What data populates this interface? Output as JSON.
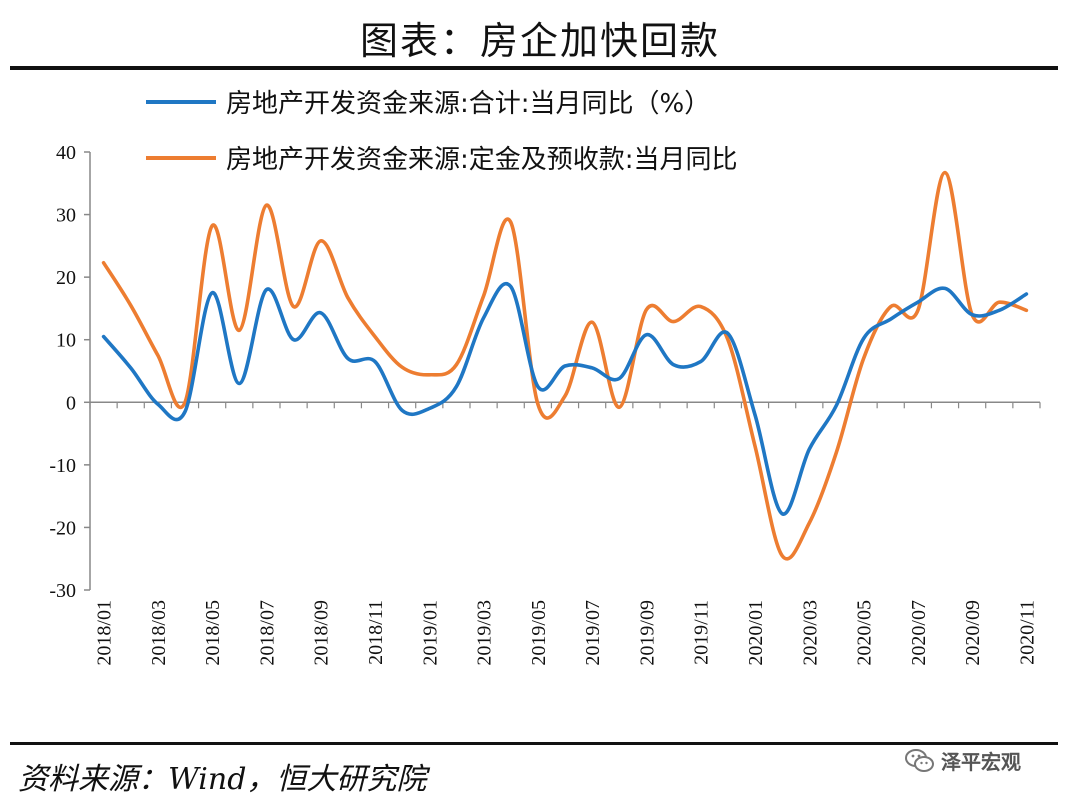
{
  "header": {
    "title": "图表：房企加快回款"
  },
  "footer": {
    "source": "资料来源：Wind，恒大研究院",
    "brand": "泽平宏观"
  },
  "icons": {
    "brand_icon": "wechat-icon"
  },
  "colors": {
    "series_total": "#1f77c4",
    "series_deposit": "#ed7d31",
    "axis": "#888888"
  },
  "chart_data": {
    "type": "line",
    "title": "",
    "xlabel": "",
    "ylabel": "",
    "ylim": [
      -30,
      40
    ],
    "yticks": [
      -30,
      -20,
      -10,
      0,
      10,
      20,
      30,
      40
    ],
    "grid": false,
    "legend_position": "top",
    "x": [
      "2018/01",
      "2018/02",
      "2018/03",
      "2018/04",
      "2018/05",
      "2018/06",
      "2018/07",
      "2018/08",
      "2018/09",
      "2018/10",
      "2018/11",
      "2018/12",
      "2019/01",
      "2019/02",
      "2019/03",
      "2019/04",
      "2019/05",
      "2019/06",
      "2019/07",
      "2019/08",
      "2019/09",
      "2019/10",
      "2019/11",
      "2019/12",
      "2020/01",
      "2020/02",
      "2020/03",
      "2020/04",
      "2020/05",
      "2020/06",
      "2020/07",
      "2020/08",
      "2020/09",
      "2020/10",
      "2020/11"
    ],
    "xticklabels": [
      "2018/01",
      "2018/03",
      "2018/05",
      "2018/07",
      "2018/09",
      "2018/11",
      "2019/01",
      "2019/03",
      "2019/05",
      "2019/07",
      "2019/09",
      "2019/11",
      "2020/01",
      "2020/03",
      "2020/05",
      "2020/07",
      "2020/09",
      "2020/11"
    ],
    "series": [
      {
        "name": "房地产开发资金来源:合计:当月同比（%）",
        "values": [
          10.5,
          5.5,
          -0.3,
          -1.5,
          17.5,
          3.0,
          18.0,
          10.0,
          14.3,
          7.0,
          6.5,
          -1.3,
          -1.0,
          2.5,
          13.5,
          18.5,
          2.5,
          5.8,
          5.5,
          3.8,
          10.8,
          6.0,
          6.5,
          11.0,
          -2.0,
          -17.8,
          -7.5,
          -0.5,
          10.2,
          13.3,
          16.0,
          18.2,
          14.0,
          14.7,
          17.3
        ]
      },
      {
        "name": "房地产开发资金来源:定金及预收款:当月同比",
        "values": [
          22.3,
          15.5,
          7.5,
          0.0,
          28.2,
          11.5,
          31.5,
          15.3,
          25.8,
          16.7,
          10.5,
          5.6,
          4.4,
          6.0,
          17.0,
          28.8,
          -0.3,
          1.0,
          12.8,
          -0.8,
          14.8,
          12.9,
          15.3,
          10.0,
          -7.0,
          -24.5,
          -19.3,
          -8.0,
          7.0,
          15.3,
          14.7,
          36.7,
          14.0,
          16.0,
          14.7
        ]
      }
    ]
  }
}
